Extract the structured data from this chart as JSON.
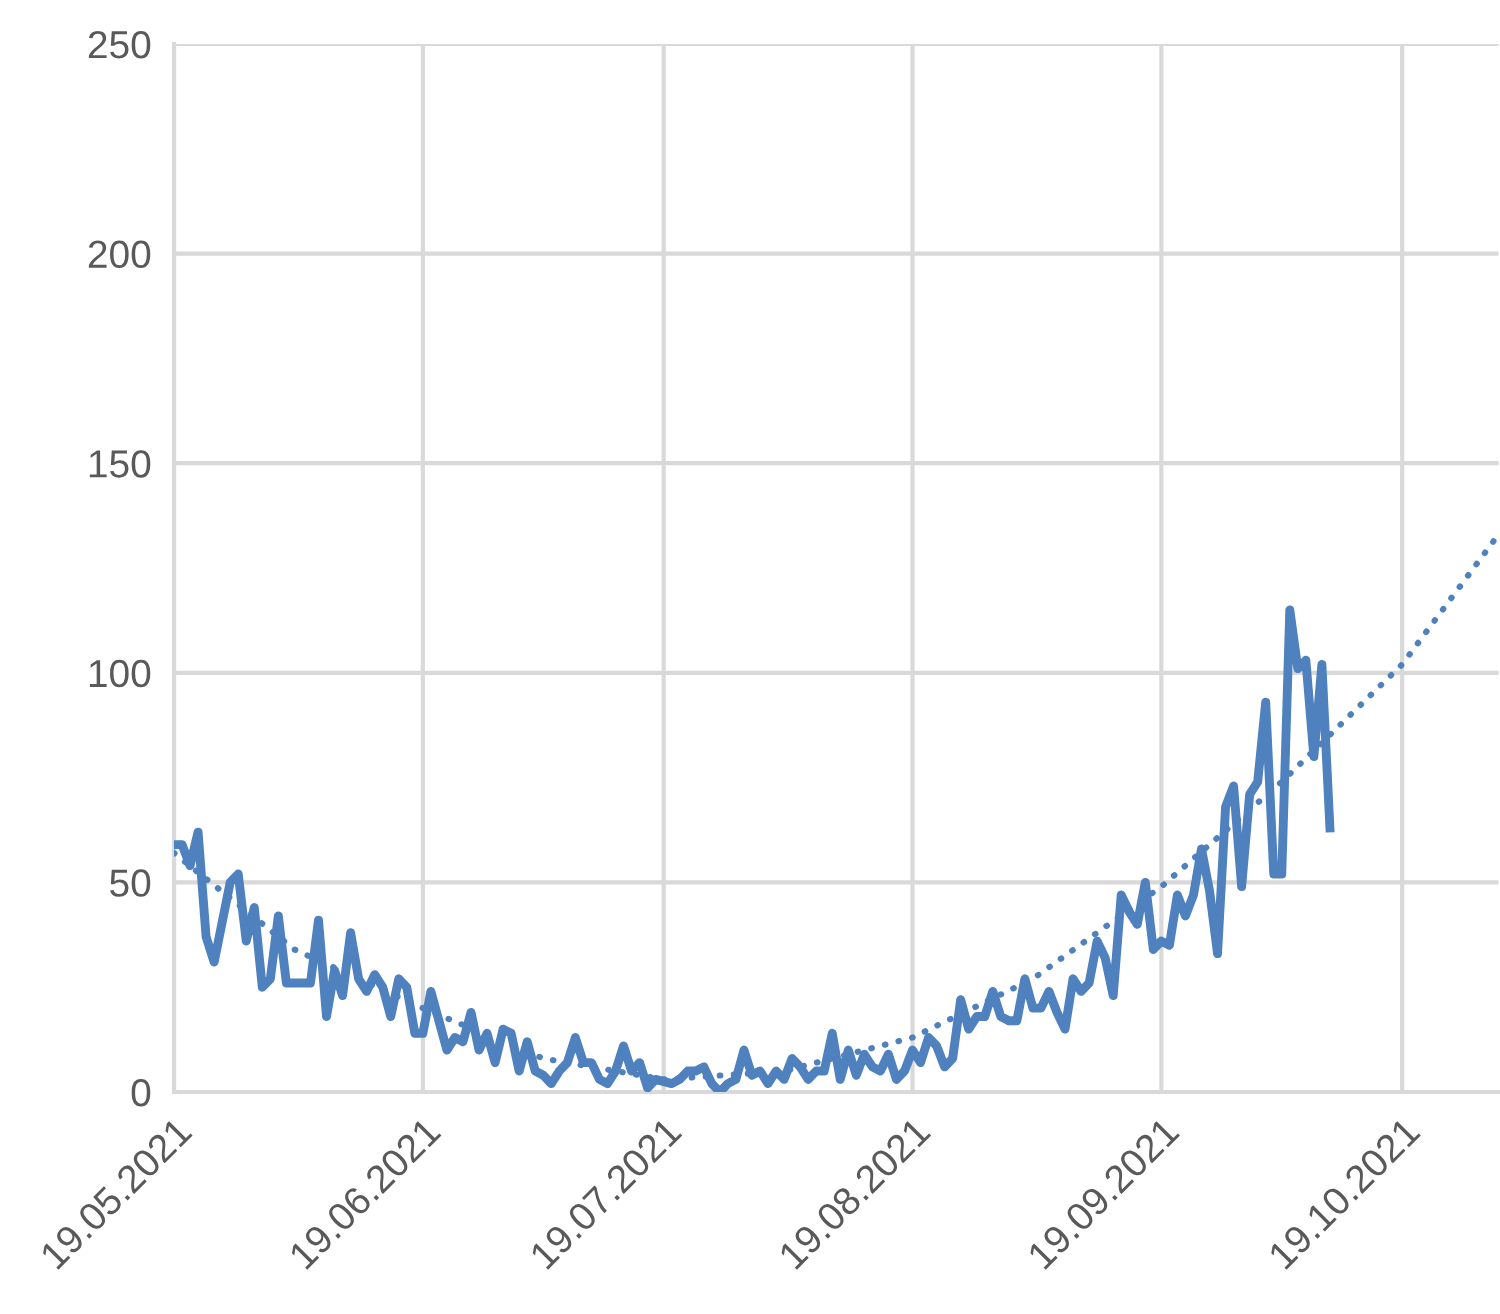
{
  "chart_data": {
    "type": "line",
    "xlim": [
      "2021-05-19",
      "2021-10-31"
    ],
    "xticks": [
      {
        "value": "2021-05-19",
        "label": "19.05.2021"
      },
      {
        "value": "2021-06-19",
        "label": "19.06.2021"
      },
      {
        "value": "2021-07-19",
        "label": "19.07.2021"
      },
      {
        "value": "2021-08-19",
        "label": "19.08.2021"
      },
      {
        "value": "2021-09-19",
        "label": "19.09.2021"
      },
      {
        "value": "2021-10-19",
        "label": "19.10.2021"
      }
    ],
    "ylim": [
      0,
      250
    ],
    "yticks": [
      0,
      50,
      100,
      150,
      200,
      250
    ],
    "grid": true,
    "legend": false,
    "series": [
      {
        "line_style": "solid",
        "color": "#4e81bd",
        "x": [
          "2021-05-19",
          "2021-05-20",
          "2021-05-21",
          "2021-05-22",
          "2021-05-23",
          "2021-05-24",
          "2021-05-26",
          "2021-05-27",
          "2021-05-28",
          "2021-05-29",
          "2021-05-30",
          "2021-05-31",
          "2021-06-01",
          "2021-06-02",
          "2021-06-04",
          "2021-06-05",
          "2021-06-06",
          "2021-06-07",
          "2021-06-08",
          "2021-06-09",
          "2021-06-10",
          "2021-06-11",
          "2021-06-12",
          "2021-06-13",
          "2021-06-14",
          "2021-06-15",
          "2021-06-16",
          "2021-06-17",
          "2021-06-18",
          "2021-06-19",
          "2021-06-20",
          "2021-06-21",
          "2021-06-22",
          "2021-06-23",
          "2021-06-24",
          "2021-06-25",
          "2021-06-26",
          "2021-06-27",
          "2021-06-28",
          "2021-06-29",
          "2021-06-30",
          "2021-07-01",
          "2021-07-02",
          "2021-07-03",
          "2021-07-04",
          "2021-07-05",
          "2021-07-06",
          "2021-07-07",
          "2021-07-08",
          "2021-07-09",
          "2021-07-10",
          "2021-07-11",
          "2021-07-12",
          "2021-07-13",
          "2021-07-14",
          "2021-07-15",
          "2021-07-16",
          "2021-07-17",
          "2021-07-18",
          "2021-07-20",
          "2021-07-21",
          "2021-07-22",
          "2021-07-23",
          "2021-07-24",
          "2021-07-25",
          "2021-07-26",
          "2021-07-27",
          "2021-07-28",
          "2021-07-29",
          "2021-07-30",
          "2021-07-31",
          "2021-08-01",
          "2021-08-02",
          "2021-08-03",
          "2021-08-04",
          "2021-08-05",
          "2021-08-06",
          "2021-08-07",
          "2021-08-08",
          "2021-08-09",
          "2021-08-10",
          "2021-08-11",
          "2021-08-12",
          "2021-08-13",
          "2021-08-14",
          "2021-08-15",
          "2021-08-16",
          "2021-08-17",
          "2021-08-18",
          "2021-08-19",
          "2021-08-20",
          "2021-08-21",
          "2021-08-22",
          "2021-08-23",
          "2021-08-24",
          "2021-08-25",
          "2021-08-26",
          "2021-08-27",
          "2021-08-28",
          "2021-08-29",
          "2021-08-30",
          "2021-08-31",
          "2021-09-01",
          "2021-09-02",
          "2021-09-03",
          "2021-09-04",
          "2021-09-05",
          "2021-09-06",
          "2021-09-07",
          "2021-09-08",
          "2021-09-09",
          "2021-09-10",
          "2021-09-11",
          "2021-09-12",
          "2021-09-13",
          "2021-09-14",
          "2021-09-15",
          "2021-09-16",
          "2021-09-17",
          "2021-09-18",
          "2021-09-19",
          "2021-09-20",
          "2021-09-21",
          "2021-09-22",
          "2021-09-23",
          "2021-09-24",
          "2021-09-25",
          "2021-09-26",
          "2021-09-27",
          "2021-09-28",
          "2021-09-29",
          "2021-09-30",
          "2021-10-01",
          "2021-10-02",
          "2021-10-03",
          "2021-10-04",
          "2021-10-05",
          "2021-10-06",
          "2021-10-07",
          "2021-10-08",
          "2021-10-09",
          "2021-10-10"
        ],
        "values": [
          59,
          59,
          54,
          62,
          37,
          31,
          50,
          52,
          36,
          44,
          25,
          27,
          42,
          26,
          26,
          26,
          41,
          18,
          29,
          23,
          38,
          27,
          24,
          28,
          25,
          18,
          27,
          25,
          14,
          14,
          24,
          17,
          10,
          13,
          12,
          19,
          10,
          14,
          7,
          15,
          14,
          5,
          12,
          5,
          4,
          2,
          5,
          7,
          13,
          7,
          7,
          3,
          2,
          5,
          11,
          5,
          7,
          1,
          3,
          2,
          3,
          5,
          5,
          6,
          2,
          0,
          2,
          3,
          10,
          4,
          5,
          2,
          5,
          3,
          8,
          6,
          3,
          5,
          5,
          14,
          3,
          10,
          4,
          9,
          6,
          5,
          9,
          3,
          5,
          10,
          7,
          13,
          11,
          6,
          8,
          22,
          15,
          18,
          18,
          24,
          18,
          17,
          17,
          27,
          20,
          20,
          24,
          19,
          15,
          27,
          24,
          26,
          36,
          32,
          23,
          47,
          43,
          40,
          50,
          34,
          36,
          35,
          47,
          42,
          47,
          58,
          48,
          33,
          68,
          73,
          49,
          71,
          74,
          93,
          52,
          52,
          115,
          101,
          103,
          80,
          102,
          63
        ]
      },
      {
        "line_style": "dotted",
        "color": "#4e81bd",
        "x": [
          "2021-05-19",
          "2021-06-03",
          "2021-06-19",
          "2021-07-04",
          "2021-07-19",
          "2021-08-03",
          "2021-08-19",
          "2021-09-03",
          "2021-09-19",
          "2021-10-04",
          "2021-10-19",
          "2021-10-31"
        ],
        "values": [
          57,
          34,
          20,
          8,
          3,
          5,
          13,
          27,
          49,
          74,
          102,
          133
        ]
      }
    ]
  }
}
